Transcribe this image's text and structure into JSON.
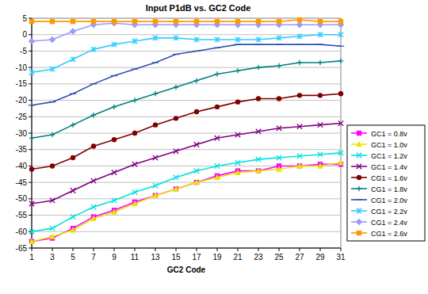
{
  "chart_data": {
    "type": "line",
    "title": "Input P1dB vs. GC2 Code",
    "x_label": "GC2 Code",
    "x": [
      1,
      3,
      5,
      7,
      9,
      11,
      13,
      15,
      17,
      19,
      21,
      23,
      25,
      27,
      29,
      31
    ],
    "xlim": [
      1,
      31
    ],
    "xticks": [
      1,
      3,
      5,
      7,
      9,
      11,
      13,
      15,
      17,
      19,
      21,
      23,
      25,
      27,
      29,
      31
    ],
    "ylim": [
      -65,
      5
    ],
    "yticks": [
      5,
      0,
      -5,
      -10,
      -15,
      -20,
      -25,
      -30,
      -35,
      -40,
      -45,
      -50,
      -55,
      -60,
      -65
    ],
    "grid": true,
    "legend": "right",
    "series": [
      {
        "name": "GC1 = 0.8v",
        "color": "#ff00ff",
        "marker": "square",
        "values": [
          -63,
          -62,
          -59,
          -55.5,
          -53.5,
          -51,
          -49,
          -47,
          -45,
          -43,
          -41.5,
          -41.5,
          -40,
          -40,
          -39.5,
          -39.5
        ]
      },
      {
        "name": "GC1 = 1.0v",
        "color": "#e6e600",
        "marker": "triangle",
        "values": [
          -63,
          -61.5,
          -59.5,
          -56,
          -54,
          -51.5,
          -49,
          -47,
          -45,
          -43.5,
          -42,
          -41.5,
          -41,
          -40,
          -40,
          -39
        ]
      },
      {
        "name": "GC1 = 1.2v",
        "color": "#00e0e0",
        "marker": "x",
        "values": [
          -60,
          -59,
          -55.5,
          -52.5,
          -50.5,
          -48,
          -46,
          -43.5,
          -41.5,
          -40,
          -39,
          -38,
          -37.5,
          -37,
          -36.5,
          -36
        ]
      },
      {
        "name": "GC1 = 1.4v",
        "color": "#800080",
        "marker": "x",
        "values": [
          -51.5,
          -50.5,
          -47.5,
          -44.5,
          -42,
          -39.5,
          -37.5,
          -35.5,
          -33.5,
          -31.5,
          -30.5,
          -29.5,
          -28.5,
          -28,
          -27.5,
          -27
        ]
      },
      {
        "name": "CG1 = 1.6v",
        "color": "#800000",
        "marker": "circle",
        "values": [
          -41,
          -40,
          -37.5,
          -34,
          -32,
          -30,
          -27.5,
          -25.5,
          -23.5,
          -22,
          -20.5,
          -19.5,
          -19.5,
          -18.5,
          -18.5,
          -18
        ]
      },
      {
        "name": "CG1 = 1.8v",
        "color": "#008080",
        "marker": "plus",
        "values": [
          -31.5,
          -30.5,
          -27.5,
          -24.5,
          -22,
          -20,
          -18,
          -16,
          -14,
          -12,
          -11,
          -10,
          -9.5,
          -8.5,
          -8.5,
          -8
        ]
      },
      {
        "name": "CG1 = 2.0v",
        "color": "#3050b0",
        "marker": "dash",
        "values": [
          -21.5,
          -20.5,
          -18,
          -15,
          -12.5,
          -10.5,
          -8.5,
          -6,
          -5,
          -4,
          -3,
          -3,
          -3,
          -3,
          -3,
          -3.5
        ]
      },
      {
        "name": "CG1 = 2.2v",
        "color": "#33ccff",
        "marker": "star",
        "values": [
          -11.5,
          -10.5,
          -7.5,
          -4.5,
          -3,
          -2,
          -1,
          -1,
          -1.5,
          -1.5,
          -1.5,
          -1.5,
          -1,
          -0.5,
          0,
          0
        ]
      },
      {
        "name": "CG1 = 2.4v",
        "color": "#9999ff",
        "marker": "diamond",
        "values": [
          -2,
          -1.5,
          1,
          3,
          3.5,
          3,
          3,
          3,
          3,
          3,
          3,
          3,
          3,
          3,
          3,
          3
        ]
      },
      {
        "name": "CG1 = 2.6v",
        "color": "#ff9900",
        "marker": "square",
        "values": [
          4,
          4,
          4,
          4,
          4,
          4,
          4,
          4,
          4,
          4,
          4,
          4,
          4,
          4.5,
          4,
          4
        ]
      }
    ]
  }
}
